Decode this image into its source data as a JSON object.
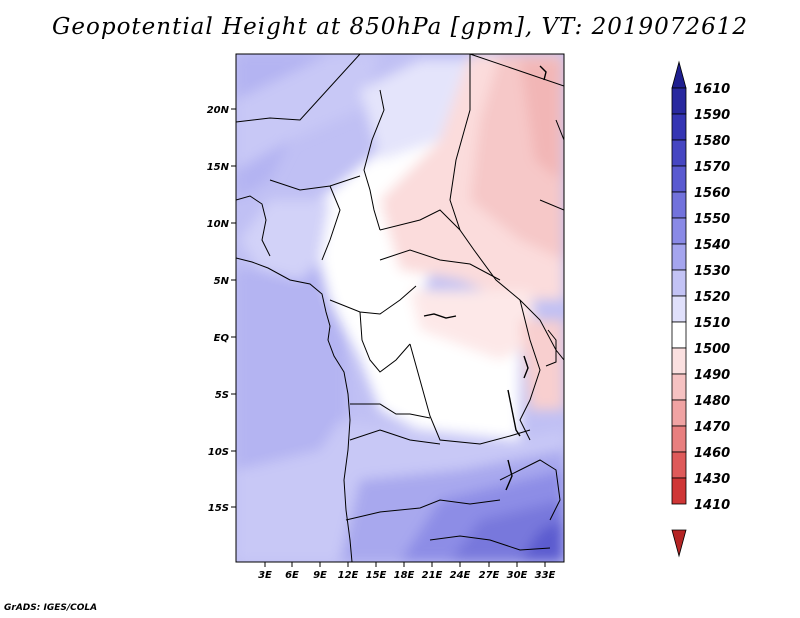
{
  "title": "Geopotential Height at 850hPa [gpm], VT: 2019072612",
  "credit": "GrADS: IGES/COLA",
  "map": {
    "lat_labels": [
      "20N",
      "15N",
      "10N",
      "5N",
      "EQ",
      "5S",
      "10S",
      "15S"
    ],
    "lon_labels": [
      "3E",
      "6E",
      "9E",
      "12E",
      "15E",
      "18E",
      "21E",
      "24E",
      "27E",
      "30E",
      "33E"
    ]
  },
  "colorbar": {
    "levels": [
      "1610",
      "1590",
      "1580",
      "1570",
      "1560",
      "1550",
      "1540",
      "1530",
      "1520",
      "1510",
      "1500",
      "1490",
      "1480",
      "1470",
      "1460",
      "1430",
      "1410"
    ],
    "colors": [
      "#1f1f8f",
      "#29299f",
      "#3535b3",
      "#4646c2",
      "#5a5ad0",
      "#7272dc",
      "#8a8ae6",
      "#a5a5ee",
      "#c3c3f5",
      "#e0e0fb",
      "#ffffff",
      "#fbe0e0",
      "#f6c2c2",
      "#f0a3a3",
      "#e87f7f",
      "#de5a5a",
      "#cf3636",
      "#b42424"
    ],
    "top_color": "#1f1f8f",
    "bottom_color": "#b42424"
  }
}
